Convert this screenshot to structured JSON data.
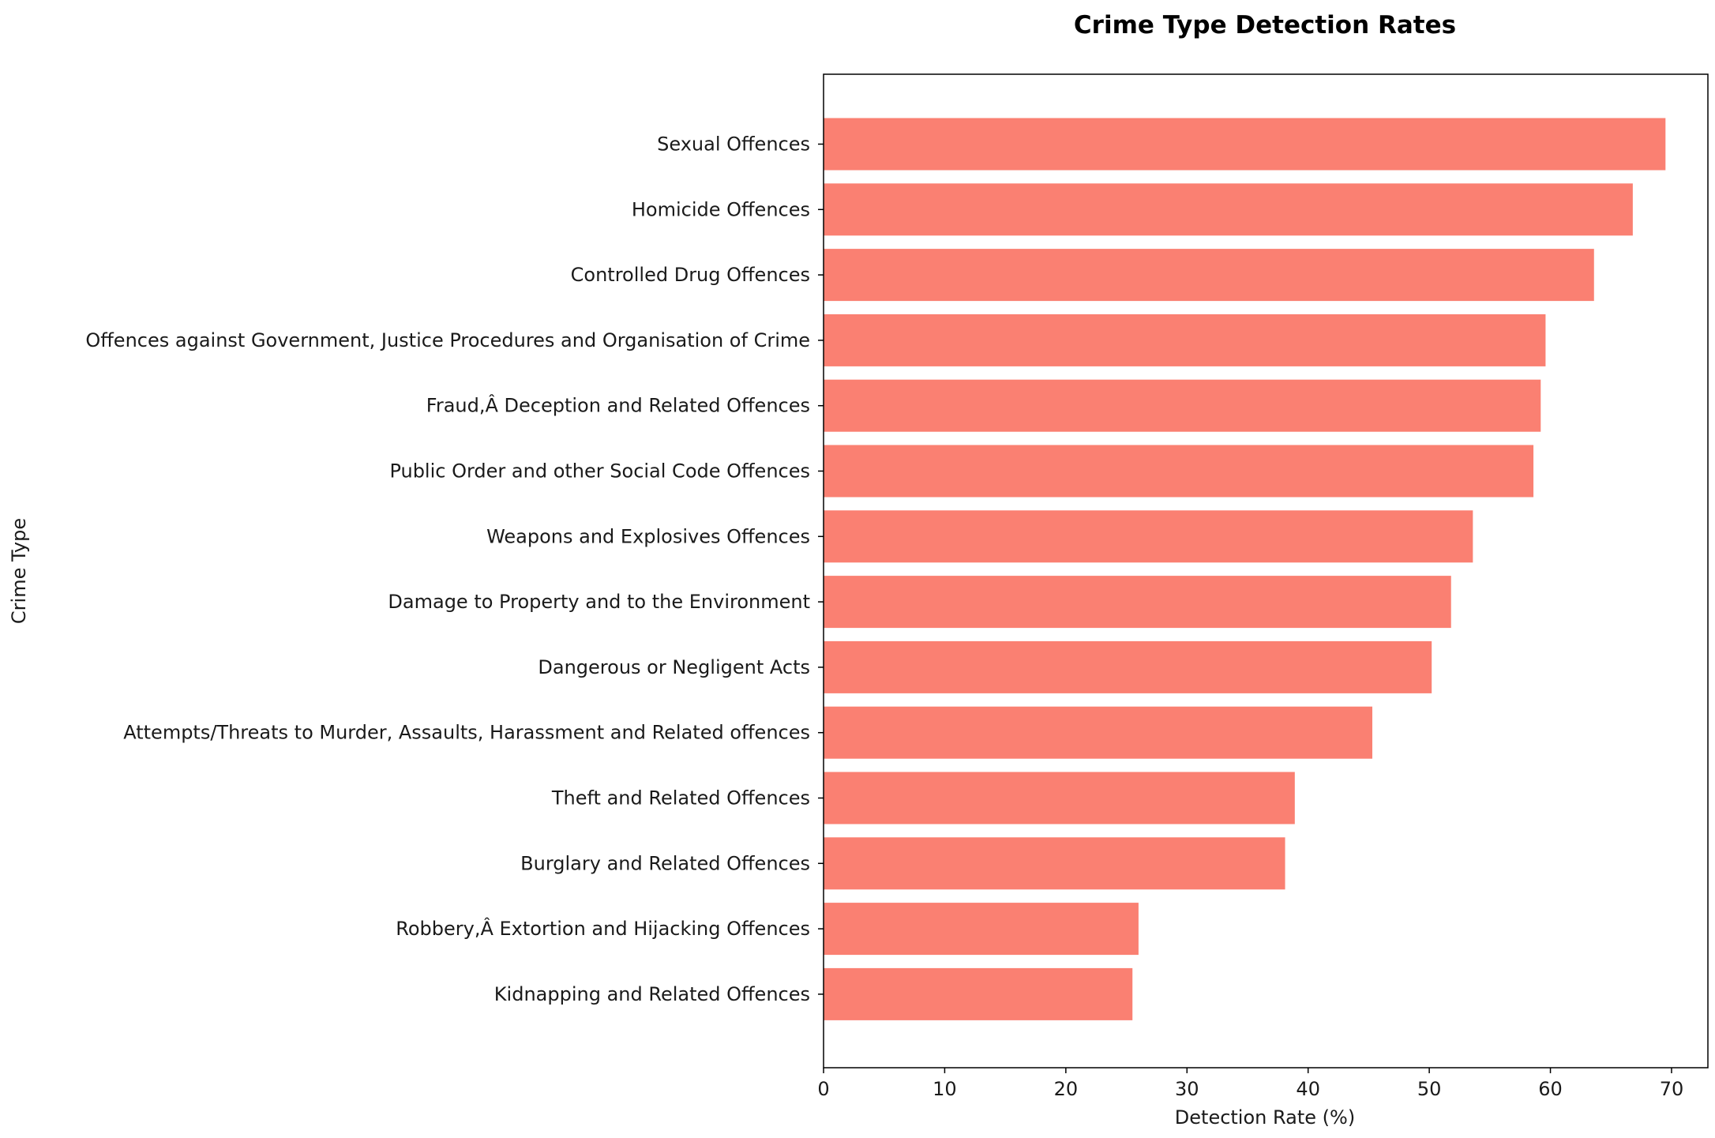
{
  "chart_data": {
    "type": "bar",
    "orientation": "horizontal",
    "title": "Crime Type Detection Rates",
    "xlabel": "Detection Rate (%)",
    "ylabel": "Crime Type",
    "xlim": [
      0,
      73
    ],
    "xticks": [
      0,
      10,
      20,
      30,
      40,
      50,
      60,
      70
    ],
    "grid": false,
    "bar_color": "#fa8072",
    "categories": [
      "Sexual Offences",
      "Homicide Offences",
      "Controlled Drug Offences",
      "Offences against Government, Justice Procedures and Organisation of Crime",
      "Fraud,Â Deception and Related Offences",
      "Public Order and other Social Code Offences",
      "Weapons and Explosives Offences",
      "Damage to Property and to the Environment",
      "Dangerous or Negligent Acts",
      "Attempts/Threats to Murder, Assaults, Harassment and Related offences",
      "Theft and Related Offences",
      "Burglary and Related Offences",
      "Robbery,Â Extortion and Hijacking Offences",
      "Kidnapping and Related Offences"
    ],
    "values": [
      69.5,
      66.8,
      63.6,
      59.6,
      59.2,
      58.6,
      53.6,
      51.8,
      50.2,
      45.3,
      38.9,
      38.1,
      26.0,
      25.5
    ]
  }
}
